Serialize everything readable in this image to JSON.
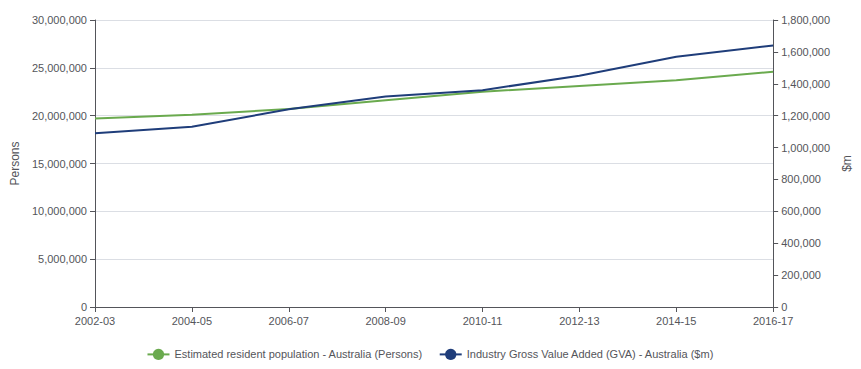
{
  "chart_data": {
    "type": "line",
    "categories": [
      "2002-03",
      "2004-05",
      "2006-07",
      "2008-09",
      "2010-11",
      "2012-13",
      "2014-15",
      "2016-17"
    ],
    "series": [
      {
        "name": "Estimated resident population - Australia (Persons)",
        "color": "#6aaa4e",
        "axis": "y",
        "values": [
          19700000,
          20100000,
          20700000,
          21600000,
          22500000,
          23100000,
          23700000,
          24600000
        ]
      },
      {
        "name": "Industry Gross Value Added (GVA) - Australia ($m)",
        "color": "#1f3d7a",
        "axis": "y2",
        "values": [
          1090000,
          1130000,
          1240000,
          1320000,
          1360000,
          1450000,
          1570000,
          1640000
        ]
      }
    ],
    "ylabel": "Persons",
    "y2label": "$m",
    "ylim": [
      0,
      30000000
    ],
    "yticks": [
      0,
      {
        "value": 5000000,
        "label": "5,000,000"
      },
      {
        "value": 10000000,
        "label": "10,000,000"
      },
      {
        "value": 15000000,
        "label": "15,000,000"
      },
      {
        "value": 20000000,
        "label": "20,000,000"
      },
      {
        "value": 25000000,
        "label": "25,000,000"
      },
      {
        "value": 30000000,
        "label": "30,000,000"
      }
    ],
    "y2lim": [
      0,
      1800000
    ],
    "y2ticks": [
      0,
      {
        "value": 200000,
        "label": "200,000"
      },
      {
        "value": 400000,
        "label": "400,000"
      },
      {
        "value": 600000,
        "label": "600,000"
      },
      {
        "value": 800000,
        "label": "800,000"
      },
      {
        "value": 1000000,
        "label": "1,000,000"
      },
      {
        "value": 1200000,
        "label": "1,200,000"
      },
      {
        "value": 1400000,
        "label": "1,400,000"
      },
      {
        "value": 1600000,
        "label": "1,600,000"
      },
      {
        "value": 1800000,
        "label": "1,800,000"
      }
    ],
    "grid": true,
    "legend": "bottom"
  }
}
